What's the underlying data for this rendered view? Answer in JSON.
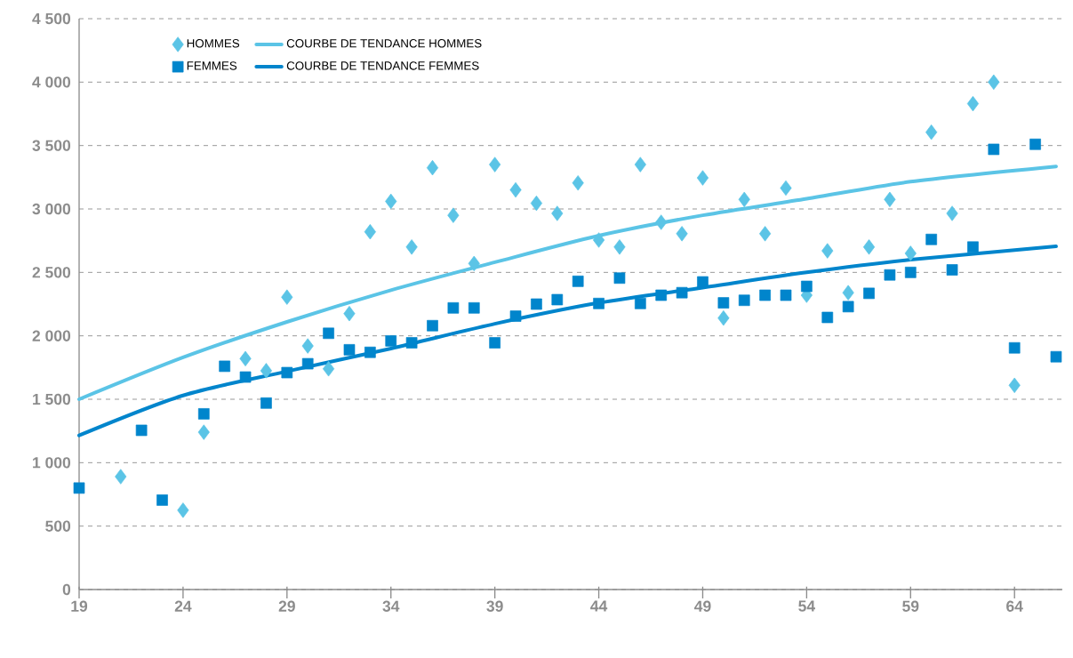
{
  "chart_data": {
    "type": "scatter",
    "xlim": [
      19,
      66.3
    ],
    "xticks": [
      19,
      24,
      29,
      34,
      39,
      44,
      49,
      54,
      59,
      64
    ],
    "ylim": [
      0,
      4500
    ],
    "yticks": [
      0,
      500,
      {
        "value": 1000,
        "label": "1 000"
      },
      {
        "value": 1500,
        "label": "1 500"
      },
      {
        "value": 2000,
        "label": "2 000"
      },
      {
        "value": 2500,
        "label": "2 500"
      },
      {
        "value": 3000,
        "label": "3 000"
      },
      {
        "value": 3500,
        "label": "3 500"
      },
      {
        "value": 4000,
        "label": "4 000"
      },
      {
        "value": 4500,
        "label": "4 500"
      }
    ],
    "grid": "y",
    "legend": "top left",
    "series": [
      {
        "name": "HOMMES",
        "marker": "diamond",
        "color": "#5bc4e6",
        "x": [
          21,
          24,
          25,
          27,
          28,
          29,
          30,
          31,
          32,
          33,
          34,
          35,
          36,
          37,
          38,
          39,
          40,
          41,
          42,
          43,
          44,
          45,
          46,
          47,
          48,
          49,
          50,
          51,
          52,
          53,
          54,
          55,
          56,
          57,
          58,
          59,
          60,
          61,
          62,
          63,
          64
        ],
        "values": [
          890,
          625,
          1240,
          1820,
          1725,
          2305,
          1920,
          1740,
          2175,
          2820,
          3060,
          2700,
          3325,
          2950,
          2570,
          3350,
          3150,
          3045,
          2965,
          3205,
          2755,
          2700,
          3350,
          2895,
          2805,
          3245,
          2140,
          3075,
          2805,
          3165,
          2320,
          2670,
          2340,
          2700,
          3075,
          2650,
          3605,
          2965,
          3830,
          4000,
          1610
        ]
      },
      {
        "name": "COURBE DE TENDANCE HOMMES",
        "type": "line",
        "marker": "none",
        "line_style": "solid",
        "color": "#5bc4e6",
        "x": [
          19,
          24,
          29,
          34,
          39,
          44,
          49,
          54,
          59,
          66
        ],
        "values": [
          1500,
          1830,
          2110,
          2360,
          2580,
          2790,
          2950,
          3080,
          3215,
          3335
        ]
      },
      {
        "name": "FEMMES",
        "marker": "square",
        "color": "#0085cc",
        "x": [
          19,
          22,
          23,
          25,
          26,
          27,
          28,
          29,
          30,
          31,
          32,
          33,
          34,
          35,
          36,
          37,
          38,
          39,
          40,
          41,
          42,
          43,
          44,
          45,
          46,
          47,
          48,
          49,
          50,
          51,
          52,
          53,
          54,
          55,
          56,
          57,
          58,
          59,
          60,
          61,
          62,
          63,
          64,
          65,
          66
        ],
        "values": [
          800,
          1255,
          705,
          1385,
          1760,
          1675,
          1470,
          1710,
          1780,
          2020,
          1890,
          1870,
          1960,
          1945,
          2080,
          2220,
          2220,
          1945,
          2155,
          2250,
          2285,
          2430,
          2255,
          2455,
          2255,
          2320,
          2340,
          2425,
          2260,
          2280,
          2320,
          2320,
          2390,
          2145,
          2230,
          2335,
          2480,
          2500,
          2760,
          2520,
          2700,
          3470,
          1905,
          3510,
          1835
        ]
      },
      {
        "name": "COURBE DE TENDANCE FEMMES",
        "type": "line",
        "marker": "none",
        "line_style": "solid",
        "color": "#0085cc",
        "x": [
          19,
          24,
          29,
          34,
          39,
          44,
          49,
          54,
          59,
          66
        ],
        "values": [
          1215,
          1530,
          1720,
          1900,
          2095,
          2260,
          2380,
          2500,
          2600,
          2705
        ]
      }
    ]
  }
}
